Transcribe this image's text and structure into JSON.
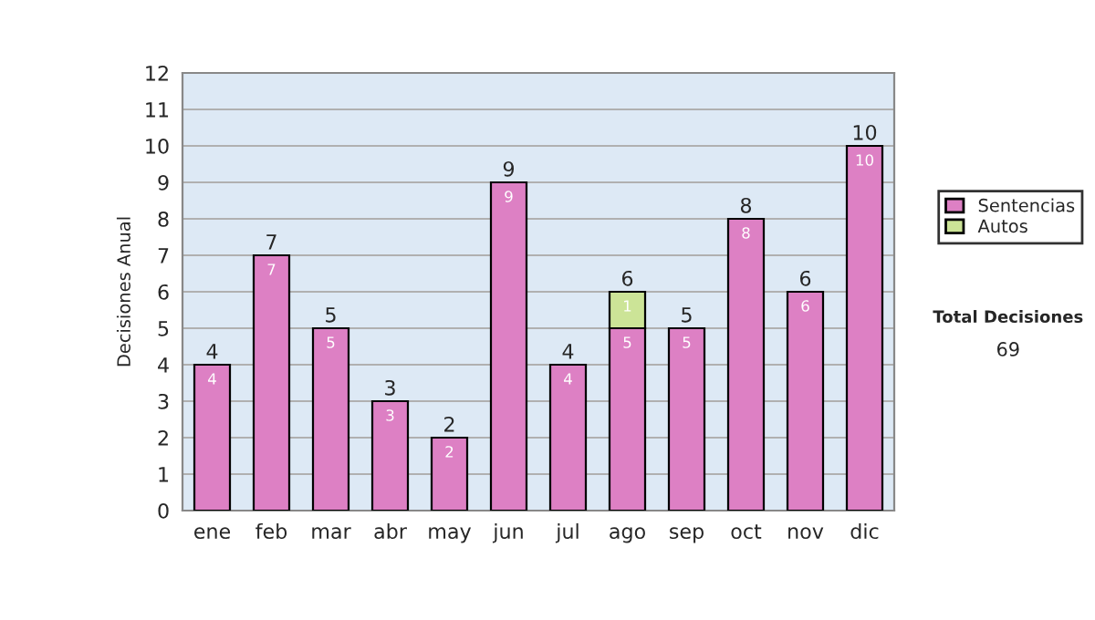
{
  "chart_data": {
    "type": "bar",
    "stacked": true,
    "ylabel": "Decisiones Anual",
    "categories": [
      "ene",
      "feb",
      "mar",
      "abr",
      "may",
      "jun",
      "jul",
      "ago",
      "sep",
      "oct",
      "nov",
      "dic"
    ],
    "series": [
      {
        "name": "Sentencias",
        "color": "#dd80c4",
        "values": [
          4,
          7,
          5,
          3,
          2,
          9,
          4,
          5,
          5,
          8,
          6,
          10
        ],
        "value_labels": [
          "4",
          "7",
          "5",
          "3",
          "2",
          "9",
          "4",
          "5",
          "5",
          "8",
          "6",
          "10"
        ]
      },
      {
        "name": "Autos",
        "color": "#cce497",
        "values": [
          null,
          null,
          null,
          null,
          null,
          null,
          null,
          1,
          null,
          null,
          null,
          null
        ],
        "value_labels": [
          null,
          null,
          null,
          null,
          null,
          null,
          null,
          "1",
          null,
          null,
          null,
          null
        ]
      }
    ],
    "totals": [
      "4",
      "7",
      "5",
      "3",
      "2",
      "9",
      "4",
      "6",
      "5",
      "8",
      "6",
      "10"
    ],
    "ylim": [
      0,
      12
    ],
    "yticks": [
      0,
      1,
      2,
      3,
      4,
      5,
      6,
      7,
      8,
      9,
      10,
      11,
      12
    ],
    "grid": "y",
    "legend": "right",
    "annotations": [
      "Total Decisiones",
      "69"
    ]
  }
}
